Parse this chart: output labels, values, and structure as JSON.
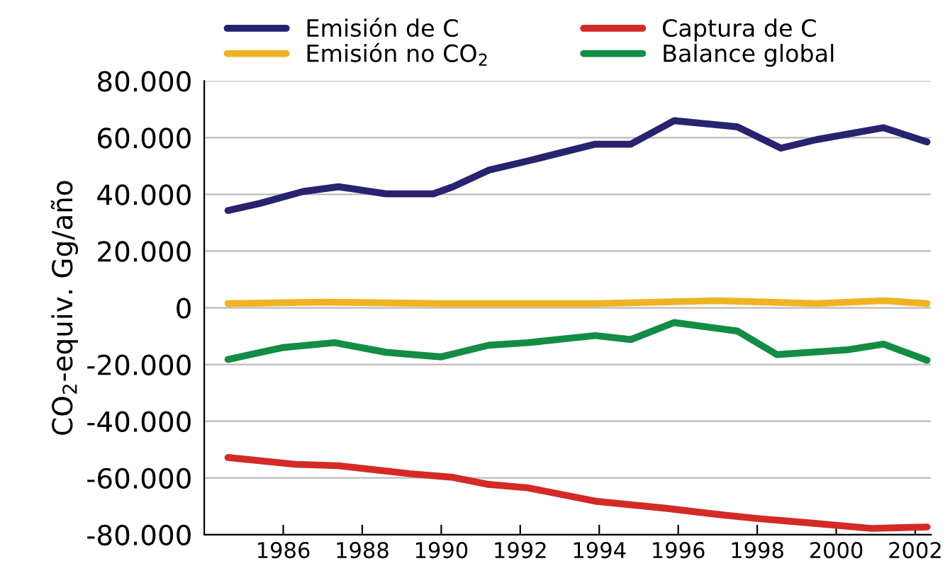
{
  "chart_data": {
    "type": "line",
    "ylabel": "CO$_{2}$-equiv. Gg/año",
    "legend": "top",
    "grid": "y",
    "xlim": [
      1984,
      2002.4
    ],
    "xticks": [
      1986,
      1988,
      1990,
      1992,
      1994,
      1996,
      1998,
      2000,
      2002
    ],
    "ylim": [
      -80000,
      80000
    ],
    "yticks": [
      {
        "value": -80000,
        "label": "-80.000"
      },
      {
        "value": -60000,
        "label": "-60.000"
      },
      {
        "value": -40000,
        "label": "-40.000"
      },
      {
        "value": -20000,
        "label": "-20.000"
      },
      {
        "value": 0,
        "label": "0"
      },
      {
        "value": 20000,
        "label": "20.000"
      },
      {
        "value": 40000,
        "label": "40.000"
      },
      {
        "value": 60000,
        "label": "60.000"
      },
      {
        "value": 80000,
        "label": "80.000"
      }
    ],
    "series": [
      {
        "name": "Emisión de C",
        "color": "#27236f",
        "x": [
          1984.6,
          1985.4,
          1986.5,
          1987.4,
          1988.6,
          1989.8,
          1990.3,
          1991.2,
          1992.2,
          1993.9,
          1994.8,
          1995.9,
          1997.5,
          1998.6,
          1999.5,
          2001.2,
          2002.3
        ],
        "values": [
          34300,
          36800,
          41000,
          42700,
          40200,
          40200,
          42700,
          48500,
          51800,
          57700,
          57700,
          66000,
          63800,
          56300,
          59300,
          63500,
          58500
        ]
      },
      {
        "name": "Captura de C",
        "color": "#d42a27",
        "x": [
          1984.6,
          1986.3,
          1987.4,
          1989.2,
          1990.3,
          1991.2,
          1992.2,
          1993.9,
          1995.7,
          1996.9,
          1998.0,
          1999.2,
          2000.9,
          2002.3
        ],
        "values": [
          -52800,
          -55200,
          -55700,
          -58500,
          -59800,
          -62300,
          -63500,
          -68200,
          -70700,
          -72700,
          -74300,
          -75700,
          -77800,
          -77300
        ]
      },
      {
        "name": "Emisión no CO$_{2}$",
        "color": "#f0b323",
        "x": [
          1984.6,
          1987.0,
          1990.0,
          1994.0,
          1997.0,
          1999.5,
          2001.2,
          2002.3
        ],
        "values": [
          1500,
          2000,
          1500,
          1500,
          2500,
          1500,
          2500,
          1500
        ]
      },
      {
        "name": "Balance global",
        "color": "#138c45",
        "x": [
          1984.6,
          1986.0,
          1987.3,
          1988.6,
          1990.0,
          1991.2,
          1992.2,
          1993.9,
          1994.8,
          1995.9,
          1997.5,
          1998.5,
          2000.3,
          2001.2,
          2002.3
        ],
        "values": [
          -18200,
          -14000,
          -12300,
          -15700,
          -17300,
          -13200,
          -12300,
          -9800,
          -11200,
          -5200,
          -8200,
          -16500,
          -14800,
          -12800,
          -18500
        ]
      }
    ]
  }
}
